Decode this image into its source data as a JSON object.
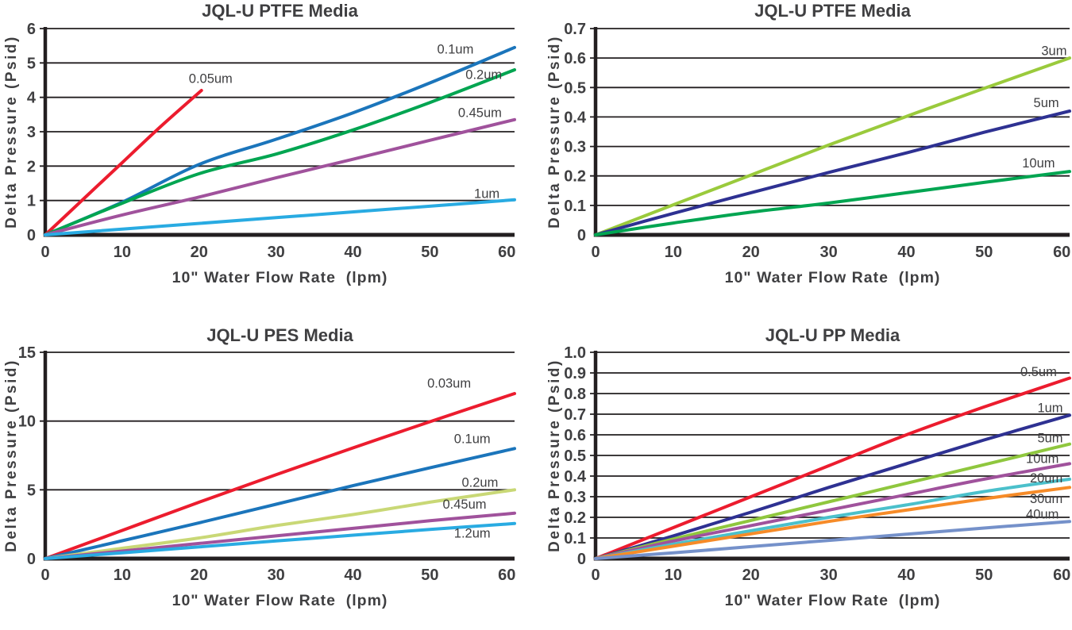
{
  "page": {
    "background": "#ffffff",
    "text_color": "#3f3f41",
    "axis_color": "#231f20",
    "grid_color": "#231f20"
  },
  "chart_data": [
    {
      "type": "line",
      "title": "JQL-U PTFE Media",
      "xlabel": "10\" Water Flow Rate  (lpm)",
      "ylabel": "Delta Pressure (Psid)",
      "xlim": [
        0,
        61
      ],
      "ylim": [
        0,
        6
      ],
      "grid": "horizontal",
      "legend_position": "inline-labels",
      "xticks": [
        "0",
        "10",
        "20",
        "30",
        "40",
        "50",
        "60"
      ],
      "yticks": [
        "0",
        "1",
        "2",
        "3",
        "4",
        "5",
        "6"
      ],
      "series": [
        {
          "name": "0.05um",
          "color": "#ec1c2e",
          "label_xy": [
            21.5,
            4.55
          ],
          "points": [
            [
              0,
              0
            ],
            [
              5,
              1.05
            ],
            [
              10,
              2.1
            ],
            [
              15,
              3.15
            ],
            [
              20.3,
              4.2
            ]
          ]
        },
        {
          "name": "0.1um",
          "color": "#1b75bb",
          "label_xy": [
            53.3,
            5.4
          ],
          "points": [
            [
              0,
              0
            ],
            [
              10,
              0.95
            ],
            [
              20,
              2.05
            ],
            [
              30,
              2.78
            ],
            [
              40,
              3.55
            ],
            [
              50,
              4.42
            ],
            [
              61,
              5.45
            ]
          ]
        },
        {
          "name": "0.2um",
          "color": "#00a551",
          "label_xy": [
            57,
            4.66
          ],
          "points": [
            [
              0,
              0
            ],
            [
              10,
              0.92
            ],
            [
              20,
              1.78
            ],
            [
              30,
              2.35
            ],
            [
              40,
              3.05
            ],
            [
              50,
              3.85
            ],
            [
              61,
              4.8
            ]
          ]
        },
        {
          "name": "0.45um",
          "color": "#a0529c",
          "label_xy": [
            56.5,
            3.55
          ],
          "points": [
            [
              0,
              0
            ],
            [
              10,
              0.58
            ],
            [
              20,
              1.1
            ],
            [
              30,
              1.66
            ],
            [
              40,
              2.2
            ],
            [
              50,
              2.75
            ],
            [
              61,
              3.35
            ]
          ]
        },
        {
          "name": "1um",
          "color": "#29abe2",
          "label_xy": [
            57.4,
            1.2
          ],
          "points": [
            [
              0,
              0
            ],
            [
              30,
              0.5
            ],
            [
              61,
              1.02
            ]
          ]
        }
      ]
    },
    {
      "type": "line",
      "title": "JQL-U PTFE Media",
      "xlabel": "10\" Water Flow Rate  (lpm)",
      "ylabel": "Delta Pressure (Psid)",
      "xlim": [
        0,
        61
      ],
      "ylim": [
        0,
        0.7
      ],
      "grid": "horizontal",
      "legend_position": "inline-labels",
      "xticks": [
        "0",
        "10",
        "20",
        "30",
        "40",
        "50",
        "60"
      ],
      "yticks": [
        "0",
        "0.1",
        "0.2",
        "0.3",
        "0.4",
        "0.5",
        "0.6",
        "0.7"
      ],
      "series": [
        {
          "name": "3um",
          "color": "#9aca3c",
          "label_xy": [
            59,
            0.625
          ],
          "points": [
            [
              0,
              0
            ],
            [
              10,
              0.102
            ],
            [
              20,
              0.203
            ],
            [
              30,
              0.305
            ],
            [
              40,
              0.402
            ],
            [
              50,
              0.497
            ],
            [
              61,
              0.6
            ]
          ]
        },
        {
          "name": "5um",
          "color": "#2e3192",
          "label_xy": [
            58,
            0.448
          ],
          "points": [
            [
              0,
              0
            ],
            [
              10,
              0.073
            ],
            [
              20,
              0.143
            ],
            [
              30,
              0.212
            ],
            [
              40,
              0.278
            ],
            [
              50,
              0.348
            ],
            [
              61,
              0.42
            ]
          ]
        },
        {
          "name": "10um",
          "color": "#00a551",
          "label_xy": [
            57,
            0.243
          ],
          "points": [
            [
              0,
              0
            ],
            [
              10,
              0.04
            ],
            [
              20,
              0.077
            ],
            [
              30,
              0.108
            ],
            [
              40,
              0.143
            ],
            [
              50,
              0.178
            ],
            [
              61,
              0.215
            ]
          ]
        }
      ]
    },
    {
      "type": "line",
      "title": "JQL-U PES Media",
      "xlabel": "10\" Water Flow Rate  (lpm)",
      "ylabel": "Delta Pressure (Psid)",
      "xlim": [
        0,
        61
      ],
      "ylim": [
        0,
        15
      ],
      "grid": "horizontal",
      "legend_position": "inline-labels",
      "xticks": [
        "0",
        "10",
        "20",
        "30",
        "40",
        "50",
        "60"
      ],
      "yticks": [
        "0",
        "5",
        "10",
        "15"
      ],
      "series": [
        {
          "name": "0.03um",
          "color": "#ec1c2e",
          "label_xy": [
            52.5,
            12.75
          ],
          "points": [
            [
              0,
              0
            ],
            [
              10,
              2.05
            ],
            [
              20,
              4.1
            ],
            [
              30,
              6.1
            ],
            [
              40,
              8.05
            ],
            [
              50,
              9.95
            ],
            [
              61,
              12
            ]
          ]
        },
        {
          "name": "0.1um",
          "color": "#1b75bb",
          "label_xy": [
            55.5,
            8.7
          ],
          "points": [
            [
              0,
              0
            ],
            [
              10,
              1.3
            ],
            [
              20,
              2.6
            ],
            [
              30,
              3.95
            ],
            [
              40,
              5.3
            ],
            [
              50,
              6.6
            ],
            [
              61,
              8
            ]
          ]
        },
        {
          "name": "0.2um",
          "color": "#c9d876",
          "label_xy": [
            56.5,
            5.55
          ],
          "points": [
            [
              0,
              0
            ],
            [
              10,
              0.75
            ],
            [
              20,
              1.5
            ],
            [
              30,
              2.4
            ],
            [
              40,
              3.2
            ],
            [
              50,
              4.1
            ],
            [
              61,
              5
            ]
          ]
        },
        {
          "name": "0.45um",
          "color": "#a0529c",
          "label_xy": [
            54.5,
            3.95
          ],
          "points": [
            [
              0,
              0
            ],
            [
              10,
              0.55
            ],
            [
              20,
              1.1
            ],
            [
              30,
              1.65
            ],
            [
              40,
              2.2
            ],
            [
              50,
              2.75
            ],
            [
              61,
              3.3
            ]
          ]
        },
        {
          "name": "1.2um",
          "color": "#29abe2",
          "label_xy": [
            55.5,
            1.85
          ],
          "points": [
            [
              0,
              0
            ],
            [
              10,
              0.42
            ],
            [
              20,
              0.85
            ],
            [
              30,
              1.28
            ],
            [
              40,
              1.7
            ],
            [
              50,
              2.12
            ],
            [
              61,
              2.55
            ]
          ]
        }
      ]
    },
    {
      "type": "line",
      "title": "JQL-U PP Media",
      "xlabel": "10\" Water Flow Rate  (lpm)",
      "ylabel": "Delta Pressure (Psid)",
      "xlim": [
        0,
        61
      ],
      "ylim": [
        0,
        1.0
      ],
      "grid": "horizontal",
      "legend_position": "inline-labels",
      "xticks": [
        "0",
        "10",
        "20",
        "30",
        "40",
        "50",
        "60"
      ],
      "yticks": [
        "0",
        "0.1",
        "0.2",
        "0.3",
        "0.4",
        "0.5",
        "0.6",
        "0.7",
        "0.8",
        "0.9",
        "1.0"
      ],
      "series": [
        {
          "name": "0.5um",
          "color": "#ec1c2e",
          "label_xy": [
            57,
            0.905
          ],
          "points": [
            [
              0,
              0
            ],
            [
              10,
              0.15
            ],
            [
              20,
              0.3
            ],
            [
              30,
              0.45
            ],
            [
              40,
              0.6
            ],
            [
              50,
              0.735
            ],
            [
              61,
              0.875
            ]
          ]
        },
        {
          "name": "1um",
          "color": "#2e3192",
          "label_xy": [
            58.5,
            0.73
          ],
          "points": [
            [
              0,
              0
            ],
            [
              10,
              0.11
            ],
            [
              20,
              0.225
            ],
            [
              30,
              0.345
            ],
            [
              40,
              0.46
            ],
            [
              50,
              0.575
            ],
            [
              61,
              0.695
            ]
          ]
        },
        {
          "name": "5um",
          "color": "#8fc73e",
          "label_xy": [
            58.5,
            0.585
          ],
          "points": [
            [
              0,
              0
            ],
            [
              10,
              0.095
            ],
            [
              20,
              0.185
            ],
            [
              30,
              0.275
            ],
            [
              40,
              0.365
            ],
            [
              50,
              0.455
            ],
            [
              61,
              0.555
            ]
          ]
        },
        {
          "name": "10um",
          "color": "#a0529c",
          "label_xy": [
            57.5,
            0.485
          ],
          "points": [
            [
              0,
              0
            ],
            [
              10,
              0.085
            ],
            [
              20,
              0.16
            ],
            [
              30,
              0.235
            ],
            [
              40,
              0.31
            ],
            [
              50,
              0.385
            ],
            [
              61,
              0.46
            ]
          ]
        },
        {
          "name": "20um",
          "color": "#4bc0cb",
          "label_xy": [
            58,
            0.39
          ],
          "points": [
            [
              0,
              0
            ],
            [
              10,
              0.07
            ],
            [
              20,
              0.135
            ],
            [
              30,
              0.2
            ],
            [
              40,
              0.26
            ],
            [
              50,
              0.325
            ],
            [
              61,
              0.385
            ]
          ]
        },
        {
          "name": "30um",
          "color": "#f68b28",
          "label_xy": [
            58,
            0.29
          ],
          "points": [
            [
              0,
              0
            ],
            [
              10,
              0.06
            ],
            [
              20,
              0.12
            ],
            [
              30,
              0.18
            ],
            [
              40,
              0.235
            ],
            [
              50,
              0.29
            ],
            [
              61,
              0.345
            ]
          ]
        },
        {
          "name": "40um",
          "color": "#7591ca",
          "label_xy": [
            57.5,
            0.215
          ],
          "points": [
            [
              0,
              0
            ],
            [
              10,
              0.028
            ],
            [
              20,
              0.058
            ],
            [
              30,
              0.088
            ],
            [
              40,
              0.118
            ],
            [
              50,
              0.148
            ],
            [
              61,
              0.18
            ]
          ]
        }
      ]
    }
  ]
}
